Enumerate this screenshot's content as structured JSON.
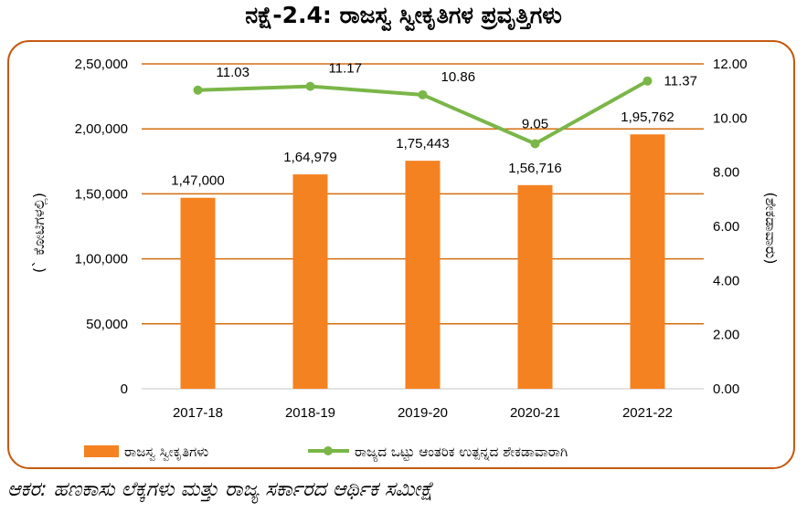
{
  "title": "ನಕ್ಷೆ-2.4: ರಾಜಸ್ವ ಸ್ವೀಕೃತಿಗಳ ಪ್ರವೃತ್ತಿಗಳು",
  "source": "ಆಕರ: ಹಣಕಾಸು ಲೆಕ್ಕಗಳು ಮತ್ತು ರಾಜ್ಯ ಸರ್ಕಾರದ ಆರ್ಥಿಕ ಸಮೀಕ್ಷೆ",
  "colors": {
    "bar": "#f58220",
    "line": "#7ab648",
    "grid": "#d36e10",
    "frame": "#c55a11"
  },
  "chart_data": {
    "type": "bar",
    "categories": [
      "2017-18",
      "2018-19",
      "2019-20",
      "2020-21",
      "2021-22"
    ],
    "series": [
      {
        "name": "ರಾಜಸ್ವ ಸ್ವೀಕೃತಿಗಳು",
        "type": "bar",
        "axis": "left",
        "values": [
          147000,
          164979,
          175443,
          156716,
          195762
        ],
        "labels": [
          "1,47,000",
          "1,64,979",
          "1,75,443",
          "1,56,716",
          "1,95,762"
        ]
      },
      {
        "name": "ರಾಜ್ಯದ ಒಟ್ಟು ಆಂತರಿಕ ಉತ್ಪನ್ನದ ಶೇಕಡಾವಾರಾಗಿ",
        "type": "line",
        "axis": "right",
        "values": [
          11.03,
          11.17,
          10.86,
          9.05,
          11.37
        ],
        "labels": [
          "11.03",
          "11.17",
          "10.86",
          "9.05",
          "11.37"
        ]
      }
    ],
    "ylabel": "(` ಕೋಟಿಗಳಲ್ಲಿ)",
    "y2label": "(ಶೇಕಡಾವಾರು)",
    "ylim": [
      0,
      250000
    ],
    "y2lim": [
      0,
      12
    ],
    "yticks": [
      "0",
      "50,000",
      "1,00,000",
      "1,50,000",
      "2,00,000",
      "2,50,000"
    ],
    "y2ticks": [
      "0.00",
      "2.00",
      "4.00",
      "6.00",
      "8.00",
      "10.00",
      "12.00"
    ],
    "grid": true,
    "legend": "bottom"
  }
}
